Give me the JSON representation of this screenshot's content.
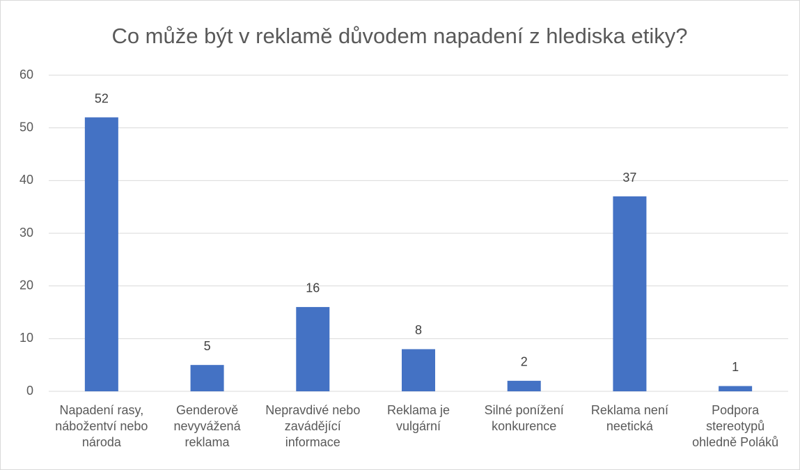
{
  "chart_data": {
    "type": "bar",
    "title": "Co může být v reklamě důvodem napadení z hlediska etiky?",
    "categories": [
      "Napadení rasy, nábožentví nebo národa",
      "Genderově nevyvážená reklama",
      "Nepravdivé nebo zavádějící informace",
      "Reklama je vulgární",
      "Silné ponížení konkurence",
      "Reklama není neetická",
      "Podpora stereotypů ohledně Poláků"
    ],
    "values": [
      52,
      5,
      16,
      8,
      2,
      37,
      1
    ],
    "color": "#4472c4",
    "ylim": [
      0,
      60
    ],
    "yticks": [
      0,
      10,
      20,
      30,
      40,
      50,
      60
    ],
    "grid": true
  }
}
